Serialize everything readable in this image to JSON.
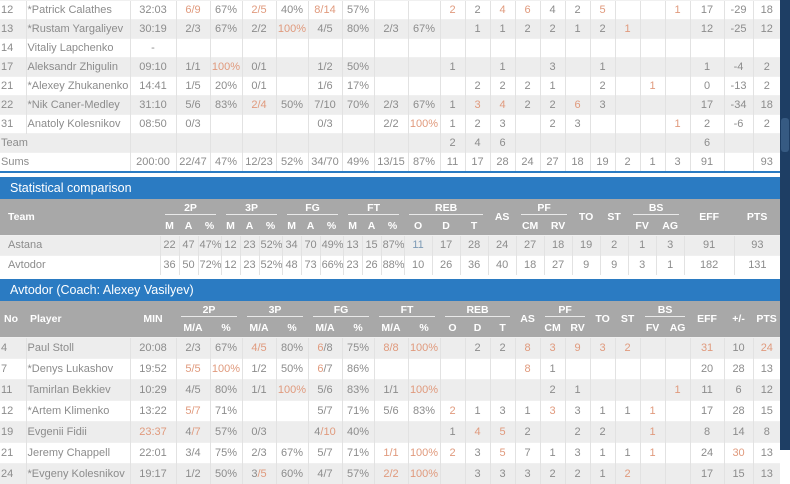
{
  "sections": {
    "comparison_title": "Statistical comparison",
    "avtodor_title": "Avtodor (Coach: Alexey Vasilyev)"
  },
  "labels": {
    "no": "No",
    "player": "Player",
    "min": "MIN",
    "team": "Team",
    "ma": "M/A",
    "m": "M",
    "a": "A",
    "pct": "%",
    "p2": "2P",
    "p3": "3P",
    "fg": "FG",
    "ft": "FT",
    "reb": "REB",
    "o": "O",
    "d": "D",
    "t": "T",
    "as": "AS",
    "pf": "PF",
    "cm": "CM",
    "rv": "RV",
    "to": "TO",
    "st": "ST",
    "bs": "BS",
    "fv": "FV",
    "ag": "AG",
    "eff": "EFF",
    "pm": "+/-",
    "pts": "PTS"
  },
  "colors": {
    "accent_blue": "#2b7bc2",
    "header_gray": "#a8a8a8",
    "value_orange": "#e09a7d",
    "value_blue": "#7d9ab5",
    "text_gray": "#8c8c8c",
    "row_stripe": "#ededed",
    "grid_line": "#e2e2e2",
    "scrollbar_track": "#1e3e64",
    "scrollbar_thumb": "#365a82"
  },
  "astana_box": {
    "rows": [
      [
        "12",
        "*Patrick Calathes",
        "32:03",
        [
          "6/9",
          "o"
        ],
        "67%",
        [
          "2/5",
          "o"
        ],
        "40%",
        [
          "8/14",
          "o"
        ],
        "57%",
        "",
        "",
        [
          "2",
          "o"
        ],
        "2",
        [
          "4",
          "o"
        ],
        [
          "6",
          "o"
        ],
        "4",
        "2",
        [
          "5",
          "o"
        ],
        "",
        "",
        [
          "1",
          "o"
        ],
        "17",
        "-29",
        "18"
      ],
      [
        "13",
        "*Rustam Yargaliyev",
        "30:19",
        "2/3",
        "67%",
        "2/2",
        [
          "100%",
          "o"
        ],
        "4/5",
        "80%",
        "2/3",
        "67%",
        "",
        "1",
        "1",
        "2",
        "2",
        "1",
        "2",
        [
          "1",
          "o"
        ],
        "",
        "",
        "12",
        "-25",
        "12"
      ],
      [
        "14",
        "Vitaliy Lapchenko",
        "-",
        "",
        "",
        "",
        "",
        "",
        "",
        "",
        "",
        "",
        "",
        "",
        "",
        "",
        "",
        "",
        "",
        "",
        "",
        "",
        "",
        ""
      ],
      [
        "17",
        "Aleksandr Zhigulin",
        "09:10",
        "1/1",
        [
          "100%",
          "o"
        ],
        "0/1",
        "",
        "1/2",
        "50%",
        "",
        "",
        "1",
        "",
        "1",
        "",
        "3",
        "",
        "1",
        "",
        "",
        "",
        "1",
        "-4",
        "2"
      ],
      [
        "21",
        "*Alexey Zhukanenko",
        "14:41",
        "1/5",
        "20%",
        "0/1",
        "",
        "1/6",
        "17%",
        "",
        "",
        "",
        "2",
        "2",
        "2",
        "1",
        "",
        "2",
        "",
        [
          "1",
          "o"
        ],
        "",
        "0",
        "-13",
        "2"
      ],
      [
        "22",
        "*Nik Caner-Medley",
        "31:10",
        "5/6",
        "83%",
        [
          "2/4",
          "o"
        ],
        "50%",
        "7/10",
        "70%",
        "2/3",
        "67%",
        "1",
        [
          "3",
          "o"
        ],
        [
          "4",
          "o"
        ],
        "2",
        "2",
        [
          "6",
          "o"
        ],
        "3",
        "",
        "",
        "",
        "17",
        "-34",
        "18"
      ],
      [
        "31",
        "Anatoly Kolesnikov",
        "08:50",
        "0/3",
        "",
        "",
        "",
        "0/3",
        "",
        "2/2",
        [
          "100%",
          "o"
        ],
        "1",
        "2",
        "3",
        "",
        "2",
        "3",
        "",
        "",
        "",
        [
          "1",
          "o"
        ],
        "2",
        "-6",
        "2"
      ],
      [
        {
          "t": "Team",
          "cs": 2,
          "al": "l"
        },
        "",
        "",
        "",
        "",
        "",
        "",
        "",
        "",
        "",
        "2",
        "4",
        "6",
        "",
        "",
        "",
        "",
        "",
        "",
        "",
        "6",
        "",
        ""
      ],
      [
        {
          "t": "Sums",
          "cs": 2,
          "al": "l"
        },
        "200:00",
        "22/47",
        "47%",
        "12/23",
        "52%",
        "34/70",
        "49%",
        "13/15",
        "87%",
        "11",
        "17",
        "28",
        "24",
        "27",
        "18",
        "19",
        "2",
        "1",
        "3",
        "91",
        "",
        "93"
      ]
    ]
  },
  "comparison": {
    "rows": [
      [
        "Astana",
        "22",
        "47",
        "47%",
        "12",
        "23",
        "52%",
        "34",
        "70",
        "49%",
        "13",
        "15",
        "87%",
        [
          "11",
          "b"
        ],
        "17",
        "28",
        "24",
        "27",
        "18",
        "19",
        "2",
        "1",
        "3",
        "91",
        "93"
      ],
      [
        "Avtodor",
        "36",
        "50",
        "72%",
        "12",
        "23",
        "52%",
        "48",
        "73",
        "66%",
        "23",
        "26",
        "88%",
        "10",
        "26",
        "36",
        "40",
        "18",
        "27",
        "9",
        "9",
        "3",
        "1",
        "182",
        "131"
      ]
    ]
  },
  "avtodor_box": {
    "rows": [
      [
        "4",
        "Paul Stoll",
        "20:08",
        "2/3",
        "67%",
        [
          "4/5",
          "o"
        ],
        "80%",
        [
          "6/8",
          "n"
        ],
        "75%",
        [
          "8/8",
          "o"
        ],
        [
          "100%",
          "o"
        ],
        "",
        "2",
        "2",
        [
          "8",
          "o"
        ],
        [
          "3",
          "o"
        ],
        [
          "9",
          "o"
        ],
        [
          "3",
          "o"
        ],
        [
          "2",
          "o"
        ],
        "",
        "",
        [
          "31",
          "o"
        ],
        "10",
        [
          "24",
          "o"
        ]
      ],
      [
        "7",
        "*Denys Lukashov",
        "19:52",
        [
          "5/5",
          "o"
        ],
        [
          "100%",
          "o"
        ],
        "1/2",
        "50%",
        [
          "6/7",
          "n"
        ],
        "86%",
        "",
        "",
        "",
        "",
        "",
        [
          "8",
          "o"
        ],
        "1",
        "",
        "",
        "",
        "",
        "",
        "20",
        "28",
        "13"
      ],
      [
        "11",
        "Tamirlan Bekkiev",
        "10:29",
        "4/5",
        "80%",
        "1/1",
        [
          "100%",
          "o"
        ],
        "5/6",
        "83%",
        "1/1",
        [
          "100%",
          "o"
        ],
        "",
        "",
        "",
        "",
        "2",
        "1",
        "",
        "",
        "",
        [
          "1",
          "o"
        ],
        "11",
        "6",
        "12"
      ],
      [
        "12",
        "*Artem Klimenko",
        "13:22",
        [
          "5/7",
          "o"
        ],
        "71%",
        "",
        "",
        "5/7",
        "71%",
        "5/6",
        "83%",
        [
          "2",
          "o"
        ],
        "1",
        "3",
        "1",
        [
          "3",
          "o"
        ],
        "3",
        "1",
        "1",
        [
          "1",
          "o"
        ],
        "",
        "17",
        "28",
        "15"
      ],
      [
        "19",
        "Evgenii Fidii",
        [
          "23:37",
          "o"
        ],
        [
          "4/7",
          "m"
        ],
        "57%",
        "0/3",
        "",
        [
          "4/10",
          "m"
        ],
        "40%",
        "",
        "",
        "1",
        [
          "4",
          "o"
        ],
        [
          "5",
          "o"
        ],
        "2",
        "",
        "2",
        "2",
        "",
        [
          "1",
          "o"
        ],
        "",
        "8",
        "14",
        "8"
      ],
      [
        "21",
        "Jeremy Chappell",
        "22:01",
        "3/4",
        "75%",
        "2/3",
        "67%",
        "5/7",
        "71%",
        [
          "1/1",
          "o"
        ],
        [
          "100%",
          "o"
        ],
        [
          "2",
          "o"
        ],
        "3",
        [
          "5",
          "o"
        ],
        "7",
        "1",
        "3",
        "1",
        "1",
        [
          "1",
          "o"
        ],
        "",
        "24",
        [
          "30",
          "o"
        ],
        "13"
      ],
      [
        "24",
        "*Evgeny Kolesnikov",
        "19:17",
        "1/2",
        "50%",
        [
          "3/5",
          "m"
        ],
        "60%",
        "4/7",
        "57%",
        [
          "2/2",
          "o"
        ],
        [
          "100%",
          "o"
        ],
        "",
        "3",
        "3",
        "3",
        "2",
        "2",
        "1",
        [
          "2",
          "o"
        ],
        "",
        "",
        "17",
        "15",
        "13"
      ]
    ]
  }
}
